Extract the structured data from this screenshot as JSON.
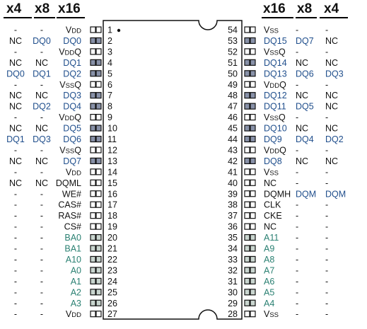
{
  "headers": {
    "left": [
      "x4",
      "x8",
      "x16"
    ],
    "right": [
      "x16",
      "x8",
      "x4"
    ]
  },
  "colors": {
    "black": "#111111",
    "dq_blue": "#1f4e8c",
    "addr_teal": "#2a8072",
    "pad_dark_fill": "#8891a8",
    "pad_light_fill": "#c9d5cf",
    "pad_border": "#111111"
  },
  "pins_left": [
    {
      "num": "1",
      "x16": "VDD",
      "x8": "-",
      "x4": "-",
      "color": "black",
      "pad": "none"
    },
    {
      "num": "2",
      "x16": "DQ0",
      "x8": "DQ0",
      "x4": "NC",
      "color": "blue",
      "pad": "dark"
    },
    {
      "num": "3",
      "x16": "VDDQ",
      "x8": "-",
      "x4": "-",
      "color": "black",
      "pad": "none"
    },
    {
      "num": "4",
      "x16": "DQ1",
      "x8": "NC",
      "x4": "NC",
      "color": "blue",
      "pad": "dark"
    },
    {
      "num": "5",
      "x16": "DQ2",
      "x8": "DQ1",
      "x4": "DQ0",
      "color": "blue",
      "pad": "dark"
    },
    {
      "num": "6",
      "x16": "VSSQ",
      "x8": "-",
      "x4": "-",
      "color": "black",
      "pad": "none"
    },
    {
      "num": "7",
      "x16": "DQ3",
      "x8": "NC",
      "x4": "NC",
      "color": "blue",
      "pad": "dark"
    },
    {
      "num": "8",
      "x16": "DQ4",
      "x8": "DQ2",
      "x4": "NC",
      "color": "blue",
      "pad": "dark"
    },
    {
      "num": "9",
      "x16": "VDDQ",
      "x8": "-",
      "x4": "-",
      "color": "black",
      "pad": "none"
    },
    {
      "num": "10",
      "x16": "DQ5",
      "x8": "NC",
      "x4": "NC",
      "color": "blue",
      "pad": "dark"
    },
    {
      "num": "11",
      "x16": "DQ6",
      "x8": "DQ3",
      "x4": "DQ1",
      "color": "blue",
      "pad": "dark"
    },
    {
      "num": "12",
      "x16": "VSSQ",
      "x8": "-",
      "x4": "-",
      "color": "black",
      "pad": "none"
    },
    {
      "num": "13",
      "x16": "DQ7",
      "x8": "NC",
      "x4": "NC",
      "color": "blue",
      "pad": "dark"
    },
    {
      "num": "14",
      "x16": "VDD",
      "x8": "-",
      "x4": "-",
      "color": "black",
      "pad": "none"
    },
    {
      "num": "15",
      "x16": "DQML",
      "x8": "NC",
      "x4": "NC",
      "color": "black",
      "pad": "none"
    },
    {
      "num": "16",
      "x16": "WE#",
      "x8": "-",
      "x4": "-",
      "color": "black",
      "pad": "none"
    },
    {
      "num": "17",
      "x16": "CAS#",
      "x8": "-",
      "x4": "-",
      "color": "black",
      "pad": "none"
    },
    {
      "num": "18",
      "x16": "RAS#",
      "x8": "-",
      "x4": "-",
      "color": "black",
      "pad": "none"
    },
    {
      "num": "19",
      "x16": "CS#",
      "x8": "-",
      "x4": "-",
      "color": "black",
      "pad": "none"
    },
    {
      "num": "20",
      "x16": "BA0",
      "x8": "-",
      "x4": "-",
      "color": "teal",
      "pad": "light"
    },
    {
      "num": "21",
      "x16": "BA1",
      "x8": "-",
      "x4": "-",
      "color": "teal",
      "pad": "light"
    },
    {
      "num": "22",
      "x16": "A10",
      "x8": "-",
      "x4": "-",
      "color": "teal",
      "pad": "light"
    },
    {
      "num": "23",
      "x16": "A0",
      "x8": "-",
      "x4": "-",
      "color": "teal",
      "pad": "light"
    },
    {
      "num": "24",
      "x16": "A1",
      "x8": "-",
      "x4": "-",
      "color": "teal",
      "pad": "light"
    },
    {
      "num": "25",
      "x16": "A2",
      "x8": "-",
      "x4": "-",
      "color": "teal",
      "pad": "light"
    },
    {
      "num": "26",
      "x16": "A3",
      "x8": "-",
      "x4": "-",
      "color": "teal",
      "pad": "light"
    },
    {
      "num": "27",
      "x16": "VDD",
      "x8": "-",
      "x4": "-",
      "color": "black",
      "pad": "none"
    }
  ],
  "pins_right": [
    {
      "num": "54",
      "x16": "VSS",
      "x8": "-",
      "x4": "-",
      "color": "black",
      "pad": "none"
    },
    {
      "num": "53",
      "x16": "DQ15",
      "x8": "DQ7",
      "x4": "NC",
      "color": "blue",
      "pad": "dark"
    },
    {
      "num": "52",
      "x16": "VSSQ",
      "x8": "-",
      "x4": "-",
      "color": "black",
      "pad": "none"
    },
    {
      "num": "51",
      "x16": "DQ14",
      "x8": "NC",
      "x4": "NC",
      "color": "blue",
      "pad": "dark"
    },
    {
      "num": "50",
      "x16": "DQ13",
      "x8": "DQ6",
      "x4": "DQ3",
      "color": "blue",
      "pad": "dark"
    },
    {
      "num": "49",
      "x16": "VDDQ",
      "x8": "-",
      "x4": "-",
      "color": "black",
      "pad": "none"
    },
    {
      "num": "48",
      "x16": "DQ12",
      "x8": "NC",
      "x4": "NC",
      "color": "blue",
      "pad": "dark"
    },
    {
      "num": "47",
      "x16": "DQ11",
      "x8": "DQ5",
      "x4": "NC",
      "color": "blue",
      "pad": "dark"
    },
    {
      "num": "46",
      "x16": "VSSQ",
      "x8": "-",
      "x4": "-",
      "color": "black",
      "pad": "none"
    },
    {
      "num": "45",
      "x16": "DQ10",
      "x8": "NC",
      "x4": "NC",
      "color": "blue",
      "pad": "dark"
    },
    {
      "num": "44",
      "x16": "DQ9",
      "x8": "DQ4",
      "x4": "DQ2",
      "color": "blue",
      "pad": "dark"
    },
    {
      "num": "43",
      "x16": "VDDQ",
      "x8": "-",
      "x4": "-",
      "color": "black",
      "pad": "none"
    },
    {
      "num": "42",
      "x16": "DQ8",
      "x8": "NC",
      "x4": "NC",
      "color": "blue",
      "pad": "dark"
    },
    {
      "num": "41",
      "x16": "VSS",
      "x8": "-",
      "x4": "-",
      "color": "black",
      "pad": "none"
    },
    {
      "num": "40",
      "x16": "NC",
      "x8": "-",
      "x4": "-",
      "color": "black",
      "pad": "none"
    },
    {
      "num": "39",
      "x16": "DQMH",
      "x8": "DQM",
      "x4": "DQM",
      "color": "black",
      "pad": "none"
    },
    {
      "num": "38",
      "x16": "CLK",
      "x8": "-",
      "x4": "-",
      "color": "black",
      "pad": "none"
    },
    {
      "num": "37",
      "x16": "CKE",
      "x8": "-",
      "x4": "-",
      "color": "black",
      "pad": "none"
    },
    {
      "num": "36",
      "x16": "NC",
      "x8": "-",
      "x4": "-",
      "color": "black",
      "pad": "none"
    },
    {
      "num": "35",
      "x16": "A11",
      "x8": "-",
      "x4": "-",
      "color": "teal",
      "pad": "light"
    },
    {
      "num": "34",
      "x16": "A9",
      "x8": "-",
      "x4": "-",
      "color": "teal",
      "pad": "light"
    },
    {
      "num": "33",
      "x16": "A8",
      "x8": "-",
      "x4": "-",
      "color": "teal",
      "pad": "light"
    },
    {
      "num": "32",
      "x16": "A7",
      "x8": "-",
      "x4": "-",
      "color": "teal",
      "pad": "light"
    },
    {
      "num": "31",
      "x16": "A6",
      "x8": "-",
      "x4": "-",
      "color": "teal",
      "pad": "light"
    },
    {
      "num": "30",
      "x16": "A5",
      "x8": "-",
      "x4": "-",
      "color": "teal",
      "pad": "light"
    },
    {
      "num": "29",
      "x16": "A4",
      "x8": "-",
      "x4": "-",
      "color": "teal",
      "pad": "light"
    },
    {
      "num": "28",
      "x16": "VSS",
      "x8": "-",
      "x4": "-",
      "color": "black",
      "pad": "none"
    }
  ]
}
